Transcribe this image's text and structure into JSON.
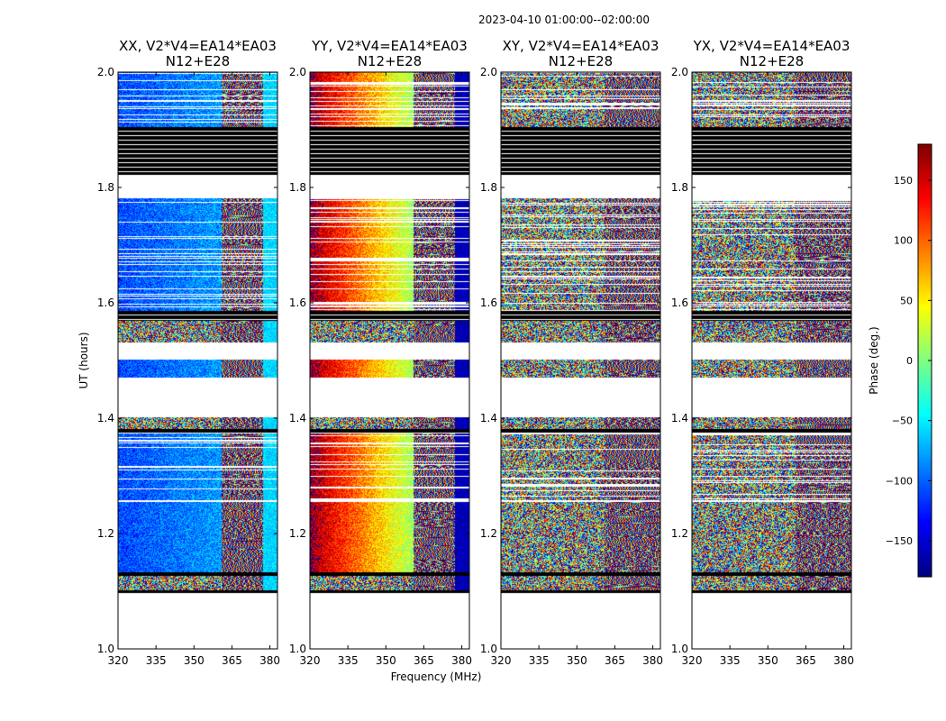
{
  "figure": {
    "suptitle": "2023-04-10  01:00:00--02:00:00",
    "ylabel": "UT (hours)",
    "xlabel": "Frequency (MHz)"
  },
  "chart_data": {
    "type": "heatmap",
    "panels": [
      {
        "title": "XX, V2*V4=EA14*EA03",
        "subtitle": "N12+E28",
        "pol": "XX"
      },
      {
        "title": "YY, V2*V4=EA14*EA03",
        "subtitle": "N12+E28",
        "pol": "YY"
      },
      {
        "title": "XY, V2*V4=EA14*EA03",
        "subtitle": "N12+E28",
        "pol": "XY"
      },
      {
        "title": "YX, V2*V4=EA14*EA03",
        "subtitle": "N12+E28",
        "pol": "YX"
      }
    ],
    "xlim": [
      320,
      383
    ],
    "ylim": [
      1.0,
      2.0
    ],
    "xticks": [
      320,
      335,
      350,
      365,
      380
    ],
    "xtick_labels": [
      "320",
      "335",
      "350",
      "365",
      "380"
    ],
    "yticks": [
      1.0,
      1.2,
      1.4,
      1.6,
      1.8,
      2.0
    ],
    "ytick_labels": [
      "1.0",
      "1.2",
      "1.4",
      "1.6",
      "1.8",
      "2.0"
    ],
    "data_blocks": [
      {
        "t0": 1.1,
        "t1": 1.13,
        "kind": "noisy"
      },
      {
        "t0": 1.132,
        "t1": 1.255,
        "kind": "structured"
      },
      {
        "t0": 1.258,
        "t1": 1.375,
        "kind": "striped"
      },
      {
        "t0": 1.38,
        "t1": 1.402,
        "kind": "noisy"
      },
      {
        "t0": 1.47,
        "t1": 1.502,
        "kind": "structured"
      },
      {
        "t0": 1.532,
        "t1": 1.57,
        "kind": "noisy"
      },
      {
        "t0": 1.585,
        "t1": 1.782,
        "kind": "striped"
      },
      {
        "t0": 1.905,
        "t1": 2.0,
        "kind": "striped"
      }
    ],
    "flagged_blocks": [
      {
        "t0": 1.097,
        "t1": 1.102
      },
      {
        "t0": 1.127,
        "t1": 1.133
      },
      {
        "t0": 1.374,
        "t1": 1.381
      },
      {
        "t0": 1.568,
        "t1": 1.586
      },
      {
        "t0": 1.822,
        "t1": 1.905
      }
    ],
    "panel_biases": {
      "XX": {
        "low_freq": -110,
        "high_freq": -60,
        "break_mhz": 361
      },
      "YY": {
        "low_freq": 170,
        "high_freq": -160,
        "break_mhz": 361
      },
      "XY": {
        "low_freq": 0,
        "high_freq": 0,
        "break_mhz": 361
      },
      "YX": {
        "low_freq": 40,
        "high_freq": 0,
        "break_mhz": 361
      }
    },
    "colorbar": {
      "label": "Phase (deg.)",
      "range": [
        -180,
        180
      ],
      "ticks": [
        150,
        100,
        50,
        0,
        -50,
        -100,
        -150
      ],
      "tick_labels": [
        "150",
        "100",
        "50",
        "0",
        "−50",
        "−100",
        "−150"
      ],
      "colormap": "jet"
    }
  }
}
